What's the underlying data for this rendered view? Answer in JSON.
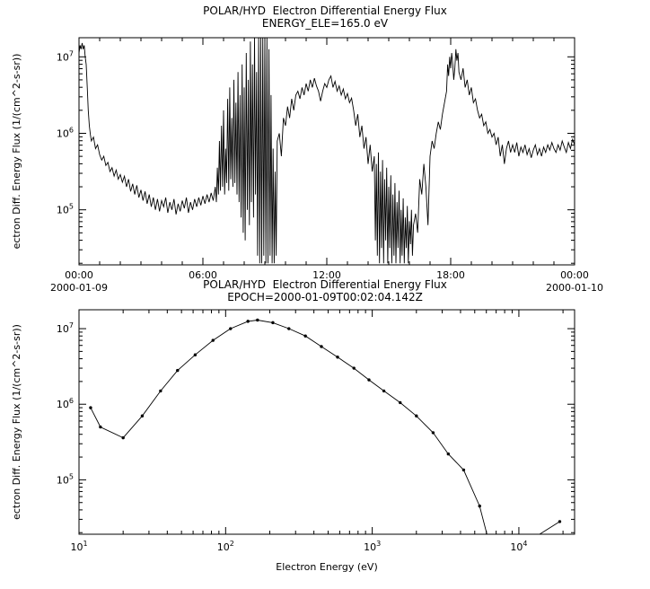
{
  "window": {
    "background": "#ffffff",
    "foreground": "#000000"
  },
  "chart_data": [
    {
      "type": "line",
      "title": "POLAR/HYD  Electron Differential Energy Flux",
      "subtitle": "ENERGY_ELE=165.0 eV",
      "ylabel": "ectron Diff. Energy Flux (1/(cm^2-s-sr))",
      "xlabel": "",
      "x_mode": "linear",
      "x_range": [
        0,
        24
      ],
      "x_major_ticks": [
        {
          "v": 0,
          "label": "00:00",
          "sublabel": "2000-01-09"
        },
        {
          "v": 6,
          "label": "06:00"
        },
        {
          "v": 12,
          "label": "12:00"
        },
        {
          "v": 18,
          "label": "18:00"
        },
        {
          "v": 24,
          "label": "00:00",
          "sublabel": "2000-01-10"
        }
      ],
      "x_minor_step": 1,
      "y_log_range": [
        4.28,
        7.25
      ],
      "y_major_exponents": [
        5,
        6,
        7
      ],
      "markers": false,
      "y_is_log10": true,
      "y_units": "1/(cm^2-s-sr), stored as log10(flux)",
      "x_units": "hours since 2000-01-09 00:00",
      "points": [
        [
          0.0,
          7.05
        ],
        [
          0.05,
          7.15
        ],
        [
          0.1,
          7.1
        ],
        [
          0.15,
          7.18
        ],
        [
          0.2,
          7.1
        ],
        [
          0.25,
          7.15
        ],
        [
          0.3,
          7.0
        ],
        [
          0.35,
          6.9
        ],
        [
          0.4,
          6.6
        ],
        [
          0.45,
          6.3
        ],
        [
          0.5,
          6.1
        ],
        [
          0.55,
          5.98
        ],
        [
          0.6,
          5.9
        ],
        [
          0.7,
          5.95
        ],
        [
          0.8,
          5.8
        ],
        [
          0.9,
          5.85
        ],
        [
          1.0,
          5.72
        ],
        [
          1.1,
          5.65
        ],
        [
          1.2,
          5.7
        ],
        [
          1.3,
          5.58
        ],
        [
          1.4,
          5.62
        ],
        [
          1.5,
          5.5
        ],
        [
          1.6,
          5.55
        ],
        [
          1.7,
          5.44
        ],
        [
          1.8,
          5.52
        ],
        [
          1.9,
          5.4
        ],
        [
          2.0,
          5.46
        ],
        [
          2.1,
          5.36
        ],
        [
          2.2,
          5.44
        ],
        [
          2.3,
          5.3
        ],
        [
          2.4,
          5.4
        ],
        [
          2.5,
          5.24
        ],
        [
          2.6,
          5.34
        ],
        [
          2.7,
          5.2
        ],
        [
          2.8,
          5.32
        ],
        [
          2.9,
          5.16
        ],
        [
          3.0,
          5.26
        ],
        [
          3.1,
          5.12
        ],
        [
          3.2,
          5.24
        ],
        [
          3.3,
          5.08
        ],
        [
          3.4,
          5.2
        ],
        [
          3.5,
          5.04
        ],
        [
          3.6,
          5.16
        ],
        [
          3.7,
          5.0
        ],
        [
          3.8,
          5.14
        ],
        [
          3.9,
          4.98
        ],
        [
          4.0,
          5.12
        ],
        [
          4.1,
          5.04
        ],
        [
          4.2,
          5.16
        ],
        [
          4.3,
          4.96
        ],
        [
          4.4,
          5.1
        ],
        [
          4.5,
          5.0
        ],
        [
          4.6,
          5.14
        ],
        [
          4.7,
          4.94
        ],
        [
          4.8,
          5.08
        ],
        [
          4.9,
          4.98
        ],
        [
          5.0,
          5.12
        ],
        [
          5.1,
          5.02
        ],
        [
          5.2,
          5.16
        ],
        [
          5.3,
          4.96
        ],
        [
          5.4,
          5.1
        ],
        [
          5.5,
          5.0
        ],
        [
          5.6,
          5.14
        ],
        [
          5.7,
          5.04
        ],
        [
          5.8,
          5.16
        ],
        [
          5.9,
          5.06
        ],
        [
          6.0,
          5.18
        ],
        [
          6.1,
          5.08
        ],
        [
          6.2,
          5.2
        ],
        [
          6.3,
          5.1
        ],
        [
          6.4,
          5.22
        ],
        [
          6.5,
          5.12
        ],
        [
          6.6,
          5.3
        ],
        [
          6.65,
          5.1
        ],
        [
          6.7,
          5.55
        ],
        [
          6.75,
          5.2
        ],
        [
          6.8,
          5.9
        ],
        [
          6.85,
          5.25
        ],
        [
          6.9,
          6.1
        ],
        [
          6.95,
          5.3
        ],
        [
          7.0,
          6.3
        ],
        [
          7.05,
          5.2
        ],
        [
          7.1,
          5.8
        ],
        [
          7.15,
          5.35
        ],
        [
          7.2,
          6.45
        ],
        [
          7.25,
          5.25
        ],
        [
          7.3,
          6.6
        ],
        [
          7.35,
          5.4
        ],
        [
          7.4,
          6.2
        ],
        [
          7.45,
          5.3
        ],
        [
          7.5,
          6.7
        ],
        [
          7.55,
          5.35
        ],
        [
          7.6,
          6.4
        ],
        [
          7.65,
          5.2
        ],
        [
          7.7,
          6.8
        ],
        [
          7.75,
          5.1
        ],
        [
          7.8,
          6.5
        ],
        [
          7.85,
          4.9
        ],
        [
          7.9,
          6.9
        ],
        [
          7.95,
          4.7
        ],
        [
          8.0,
          6.6
        ],
        [
          8.05,
          4.6
        ],
        [
          8.1,
          7.05
        ],
        [
          8.15,
          5.0
        ],
        [
          8.2,
          6.7
        ],
        [
          8.25,
          4.8
        ],
        [
          8.3,
          7.2
        ],
        [
          8.35,
          5.1
        ],
        [
          8.4,
          6.9
        ],
        [
          8.45,
          4.9
        ],
        [
          8.5,
          7.25
        ],
        [
          8.55,
          5.2
        ],
        [
          8.6,
          6.8
        ],
        [
          8.65,
          4.4
        ],
        [
          8.7,
          7.25
        ],
        [
          8.75,
          4.3
        ],
        [
          8.8,
          7.25
        ],
        [
          8.85,
          4.3
        ],
        [
          8.9,
          7.25
        ],
        [
          8.95,
          4.4
        ],
        [
          9.0,
          7.25
        ],
        [
          9.05,
          4.3
        ],
        [
          9.1,
          7.25
        ],
        [
          9.15,
          4.3
        ],
        [
          9.2,
          7.1
        ],
        [
          9.25,
          4.4
        ],
        [
          9.3,
          6.5
        ],
        [
          9.35,
          4.3
        ],
        [
          9.4,
          5.8
        ],
        [
          9.45,
          4.3
        ],
        [
          9.5,
          5.5
        ],
        [
          9.55,
          4.4
        ],
        [
          9.6,
          5.9
        ],
        [
          9.7,
          6.0
        ],
        [
          9.8,
          5.7
        ],
        [
          9.9,
          6.2
        ],
        [
          10.0,
          6.1
        ],
        [
          10.1,
          6.35
        ],
        [
          10.2,
          6.2
        ],
        [
          10.3,
          6.45
        ],
        [
          10.4,
          6.3
        ],
        [
          10.5,
          6.5
        ],
        [
          10.6,
          6.55
        ],
        [
          10.7,
          6.45
        ],
        [
          10.8,
          6.6
        ],
        [
          10.9,
          6.5
        ],
        [
          11.0,
          6.65
        ],
        [
          11.1,
          6.55
        ],
        [
          11.2,
          6.7
        ],
        [
          11.3,
          6.6
        ],
        [
          11.4,
          6.72
        ],
        [
          11.5,
          6.62
        ],
        [
          11.6,
          6.55
        ],
        [
          11.7,
          6.42
        ],
        [
          11.8,
          6.55
        ],
        [
          11.9,
          6.65
        ],
        [
          12.0,
          6.6
        ],
        [
          12.1,
          6.7
        ],
        [
          12.2,
          6.75
        ],
        [
          12.3,
          6.6
        ],
        [
          12.4,
          6.68
        ],
        [
          12.5,
          6.55
        ],
        [
          12.6,
          6.62
        ],
        [
          12.7,
          6.5
        ],
        [
          12.8,
          6.58
        ],
        [
          12.9,
          6.45
        ],
        [
          13.0,
          6.52
        ],
        [
          13.1,
          6.4
        ],
        [
          13.2,
          6.46
        ],
        [
          13.3,
          6.3
        ],
        [
          13.4,
          6.1
        ],
        [
          13.5,
          6.25
        ],
        [
          13.6,
          5.95
        ],
        [
          13.7,
          6.1
        ],
        [
          13.8,
          5.8
        ],
        [
          13.9,
          5.95
        ],
        [
          14.0,
          5.6
        ],
        [
          14.1,
          5.85
        ],
        [
          14.2,
          5.5
        ],
        [
          14.3,
          5.7
        ],
        [
          14.35,
          4.6
        ],
        [
          14.4,
          5.6
        ],
        [
          14.45,
          4.4
        ],
        [
          14.5,
          5.75
        ],
        [
          14.55,
          4.3
        ],
        [
          14.6,
          5.5
        ],
        [
          14.65,
          4.5
        ],
        [
          14.7,
          5.65
        ],
        [
          14.75,
          4.3
        ],
        [
          14.8,
          5.4
        ],
        [
          14.85,
          4.6
        ],
        [
          14.9,
          5.55
        ],
        [
          14.95,
          4.3
        ],
        [
          15.0,
          5.3
        ],
        [
          15.05,
          4.5
        ],
        [
          15.1,
          5.45
        ],
        [
          15.15,
          4.3
        ],
        [
          15.2,
          5.2
        ],
        [
          15.25,
          4.4
        ],
        [
          15.3,
          5.35
        ],
        [
          15.35,
          4.3
        ],
        [
          15.4,
          5.1
        ],
        [
          15.45,
          4.5
        ],
        [
          15.5,
          5.25
        ],
        [
          15.55,
          4.3
        ],
        [
          15.6,
          5.0
        ],
        [
          15.65,
          4.4
        ],
        [
          15.7,
          5.15
        ],
        [
          15.75,
          4.3
        ],
        [
          15.8,
          4.9
        ],
        [
          15.85,
          4.5
        ],
        [
          15.9,
          5.05
        ],
        [
          15.95,
          4.3
        ],
        [
          16.0,
          4.85
        ],
        [
          16.05,
          4.55
        ],
        [
          16.1,
          5.0
        ],
        [
          16.15,
          4.4
        ],
        [
          16.2,
          4.8
        ],
        [
          16.3,
          4.95
        ],
        [
          16.4,
          4.7
        ],
        [
          16.5,
          5.4
        ],
        [
          16.6,
          5.2
        ],
        [
          16.7,
          5.6
        ],
        [
          16.8,
          5.3
        ],
        [
          16.9,
          4.8
        ],
        [
          17.0,
          5.7
        ],
        [
          17.1,
          5.9
        ],
        [
          17.2,
          5.8
        ],
        [
          17.3,
          6.0
        ],
        [
          17.4,
          6.15
        ],
        [
          17.5,
          6.05
        ],
        [
          17.6,
          6.25
        ],
        [
          17.7,
          6.4
        ],
        [
          17.8,
          6.55
        ],
        [
          17.85,
          6.9
        ],
        [
          17.9,
          6.75
        ],
        [
          17.95,
          7.0
        ],
        [
          18.0,
          6.85
        ],
        [
          18.05,
          7.05
        ],
        [
          18.1,
          6.9
        ],
        [
          18.15,
          6.7
        ],
        [
          18.2,
          6.85
        ],
        [
          18.25,
          7.1
        ],
        [
          18.3,
          6.95
        ],
        [
          18.35,
          7.05
        ],
        [
          18.4,
          6.8
        ],
        [
          18.5,
          6.7
        ],
        [
          18.6,
          6.85
        ],
        [
          18.7,
          6.6
        ],
        [
          18.8,
          6.7
        ],
        [
          18.9,
          6.5
        ],
        [
          19.0,
          6.6
        ],
        [
          19.1,
          6.4
        ],
        [
          19.2,
          6.45
        ],
        [
          19.3,
          6.3
        ],
        [
          19.4,
          6.2
        ],
        [
          19.5,
          6.25
        ],
        [
          19.6,
          6.1
        ],
        [
          19.7,
          6.15
        ],
        [
          19.8,
          6.0
        ],
        [
          19.9,
          6.05
        ],
        [
          20.0,
          5.95
        ],
        [
          20.1,
          6.0
        ],
        [
          20.2,
          5.85
        ],
        [
          20.3,
          5.95
        ],
        [
          20.4,
          5.7
        ],
        [
          20.5,
          5.85
        ],
        [
          20.6,
          5.6
        ],
        [
          20.7,
          5.8
        ],
        [
          20.8,
          5.9
        ],
        [
          20.9,
          5.75
        ],
        [
          21.0,
          5.85
        ],
        [
          21.1,
          5.75
        ],
        [
          21.2,
          5.88
        ],
        [
          21.3,
          5.7
        ],
        [
          21.4,
          5.82
        ],
        [
          21.5,
          5.75
        ],
        [
          21.6,
          5.85
        ],
        [
          21.7,
          5.72
        ],
        [
          21.8,
          5.8
        ],
        [
          21.9,
          5.68
        ],
        [
          22.0,
          5.78
        ],
        [
          22.1,
          5.85
        ],
        [
          22.2,
          5.72
        ],
        [
          22.3,
          5.8
        ],
        [
          22.4,
          5.7
        ],
        [
          22.5,
          5.82
        ],
        [
          22.6,
          5.75
        ],
        [
          22.7,
          5.85
        ],
        [
          22.8,
          5.78
        ],
        [
          22.9,
          5.88
        ],
        [
          23.0,
          5.8
        ],
        [
          23.1,
          5.75
        ],
        [
          23.2,
          5.85
        ],
        [
          23.3,
          5.78
        ],
        [
          23.4,
          5.9
        ],
        [
          23.5,
          5.82
        ],
        [
          23.6,
          5.75
        ],
        [
          23.7,
          5.88
        ],
        [
          23.8,
          5.8
        ],
        [
          23.9,
          5.92
        ],
        [
          24.0,
          5.85
        ]
      ]
    },
    {
      "type": "line",
      "title": "POLAR/HYD  Electron Differential Energy Flux",
      "subtitle": "EPOCH=2000-01-09T00:02:04.142Z",
      "ylabel": "ectron Diff. Energy Flux (1/(cm^2-s-sr))",
      "xlabel": "Electron Energy (eV)",
      "x_mode": "log",
      "x_log_range": [
        1,
        4.38
      ],
      "x_major_exponents": [
        1,
        2,
        3,
        4
      ],
      "y_log_range": [
        4.28,
        7.25
      ],
      "y_major_exponents": [
        5,
        6,
        7
      ],
      "markers": true,
      "y_is_log10": false,
      "y_units": "1/(cm^2-s-sr)",
      "x_units": "eV",
      "points": [
        [
          12,
          900000.0
        ],
        [
          14,
          500000.0
        ],
        [
          20,
          360000.0
        ],
        [
          27,
          700000.0
        ],
        [
          36,
          1500000.0
        ],
        [
          47,
          2800000.0
        ],
        [
          62,
          4500000.0
        ],
        [
          82,
          7000000.0
        ],
        [
          108,
          10000000.0
        ],
        [
          142,
          12500000.0
        ],
        [
          165,
          13000000.0
        ],
        [
          210,
          12000000.0
        ],
        [
          270,
          10000000.0
        ],
        [
          350,
          8000000.0
        ],
        [
          450,
          5800000.0
        ],
        [
          580,
          4200000.0
        ],
        [
          750,
          3000000.0
        ],
        [
          950,
          2100000.0
        ],
        [
          1200,
          1500000.0
        ],
        [
          1550,
          1050000.0
        ],
        [
          2000,
          700000.0
        ],
        [
          2600,
          420000.0
        ],
        [
          3300,
          220000.0
        ],
        [
          4200,
          135000.0
        ],
        [
          5400,
          45000.0
        ],
        [
          6800,
          8000.0
        ],
        [
          19000,
          28000.0
        ]
      ]
    }
  ]
}
